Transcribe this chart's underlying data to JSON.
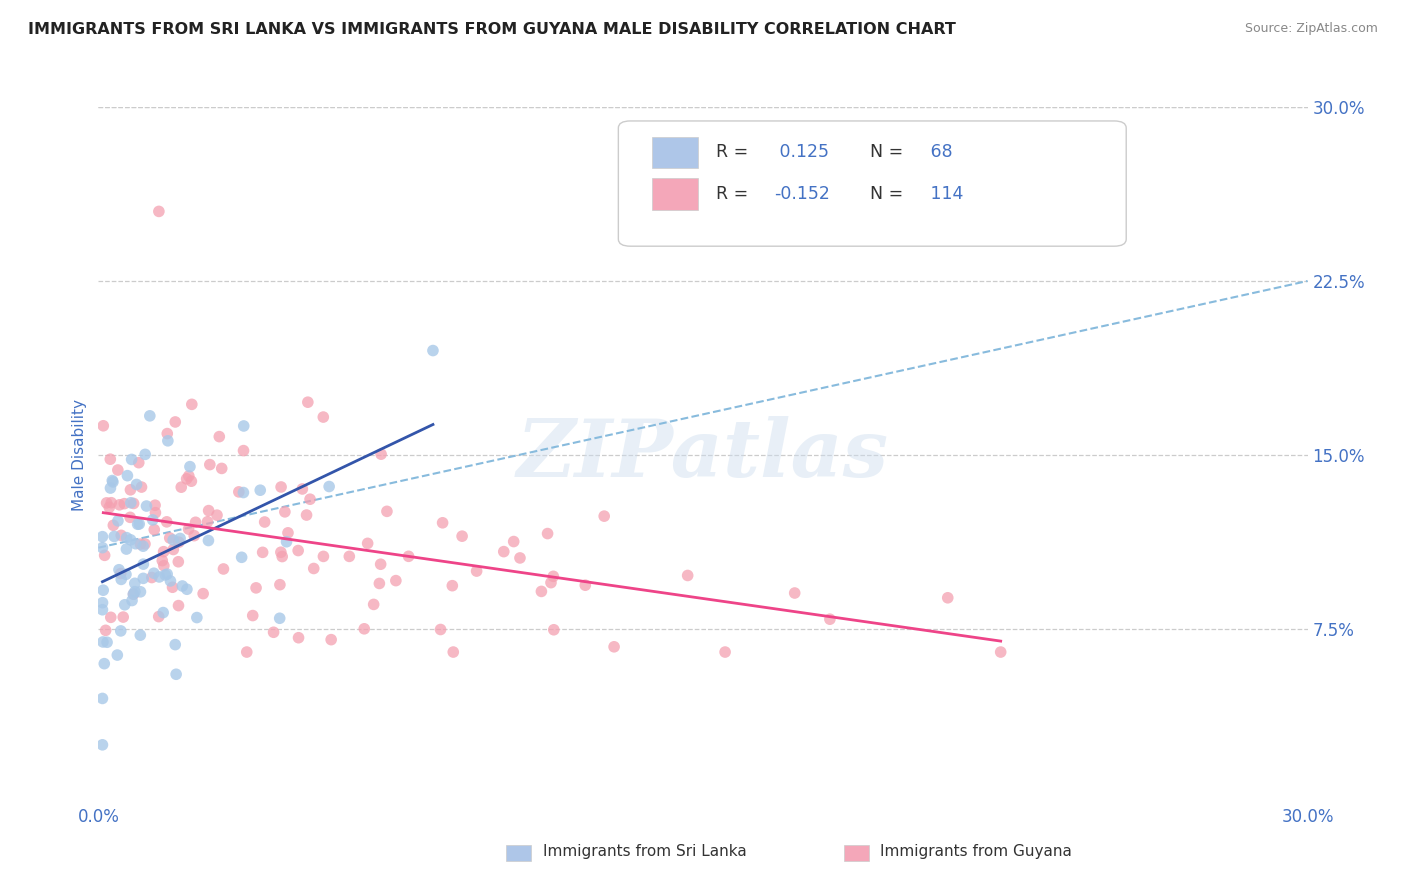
{
  "title": "IMMIGRANTS FROM SRI LANKA VS IMMIGRANTS FROM GUYANA MALE DISABILITY CORRELATION CHART",
  "source": "Source: ZipAtlas.com",
  "ylabel": "Male Disability",
  "xlim": [
    0.0,
    0.3
  ],
  "ylim": [
    0.0,
    0.3
  ],
  "ytick_values": [
    0.075,
    0.15,
    0.225,
    0.3
  ],
  "ytick_labels": [
    "7.5%",
    "15.0%",
    "22.5%",
    "30.0%"
  ],
  "watermark": "ZIPatlas",
  "sri_lanka_dot_color": "#a8c8e8",
  "guyana_dot_color": "#f4a0b0",
  "sri_lanka_line_color": "#3355aa",
  "guyana_line_color": "#ee4488",
  "dash_line_color": "#88bbdd",
  "background_color": "#ffffff",
  "grid_color": "#cccccc",
  "title_color": "#222222",
  "tick_label_color": "#4472c4",
  "ylabel_color": "#4472c4",
  "legend_box_color": "#aec6e8",
  "legend_pink_color": "#f4a7b9",
  "legend_border_color": "#cccccc",
  "R_sl": 0.125,
  "N_sl": 68,
  "R_gy": -0.152,
  "N_gy": 114,
  "label_sl": "Immigrants from Sri Lanka",
  "label_gy": "Immigrants from Guyana"
}
